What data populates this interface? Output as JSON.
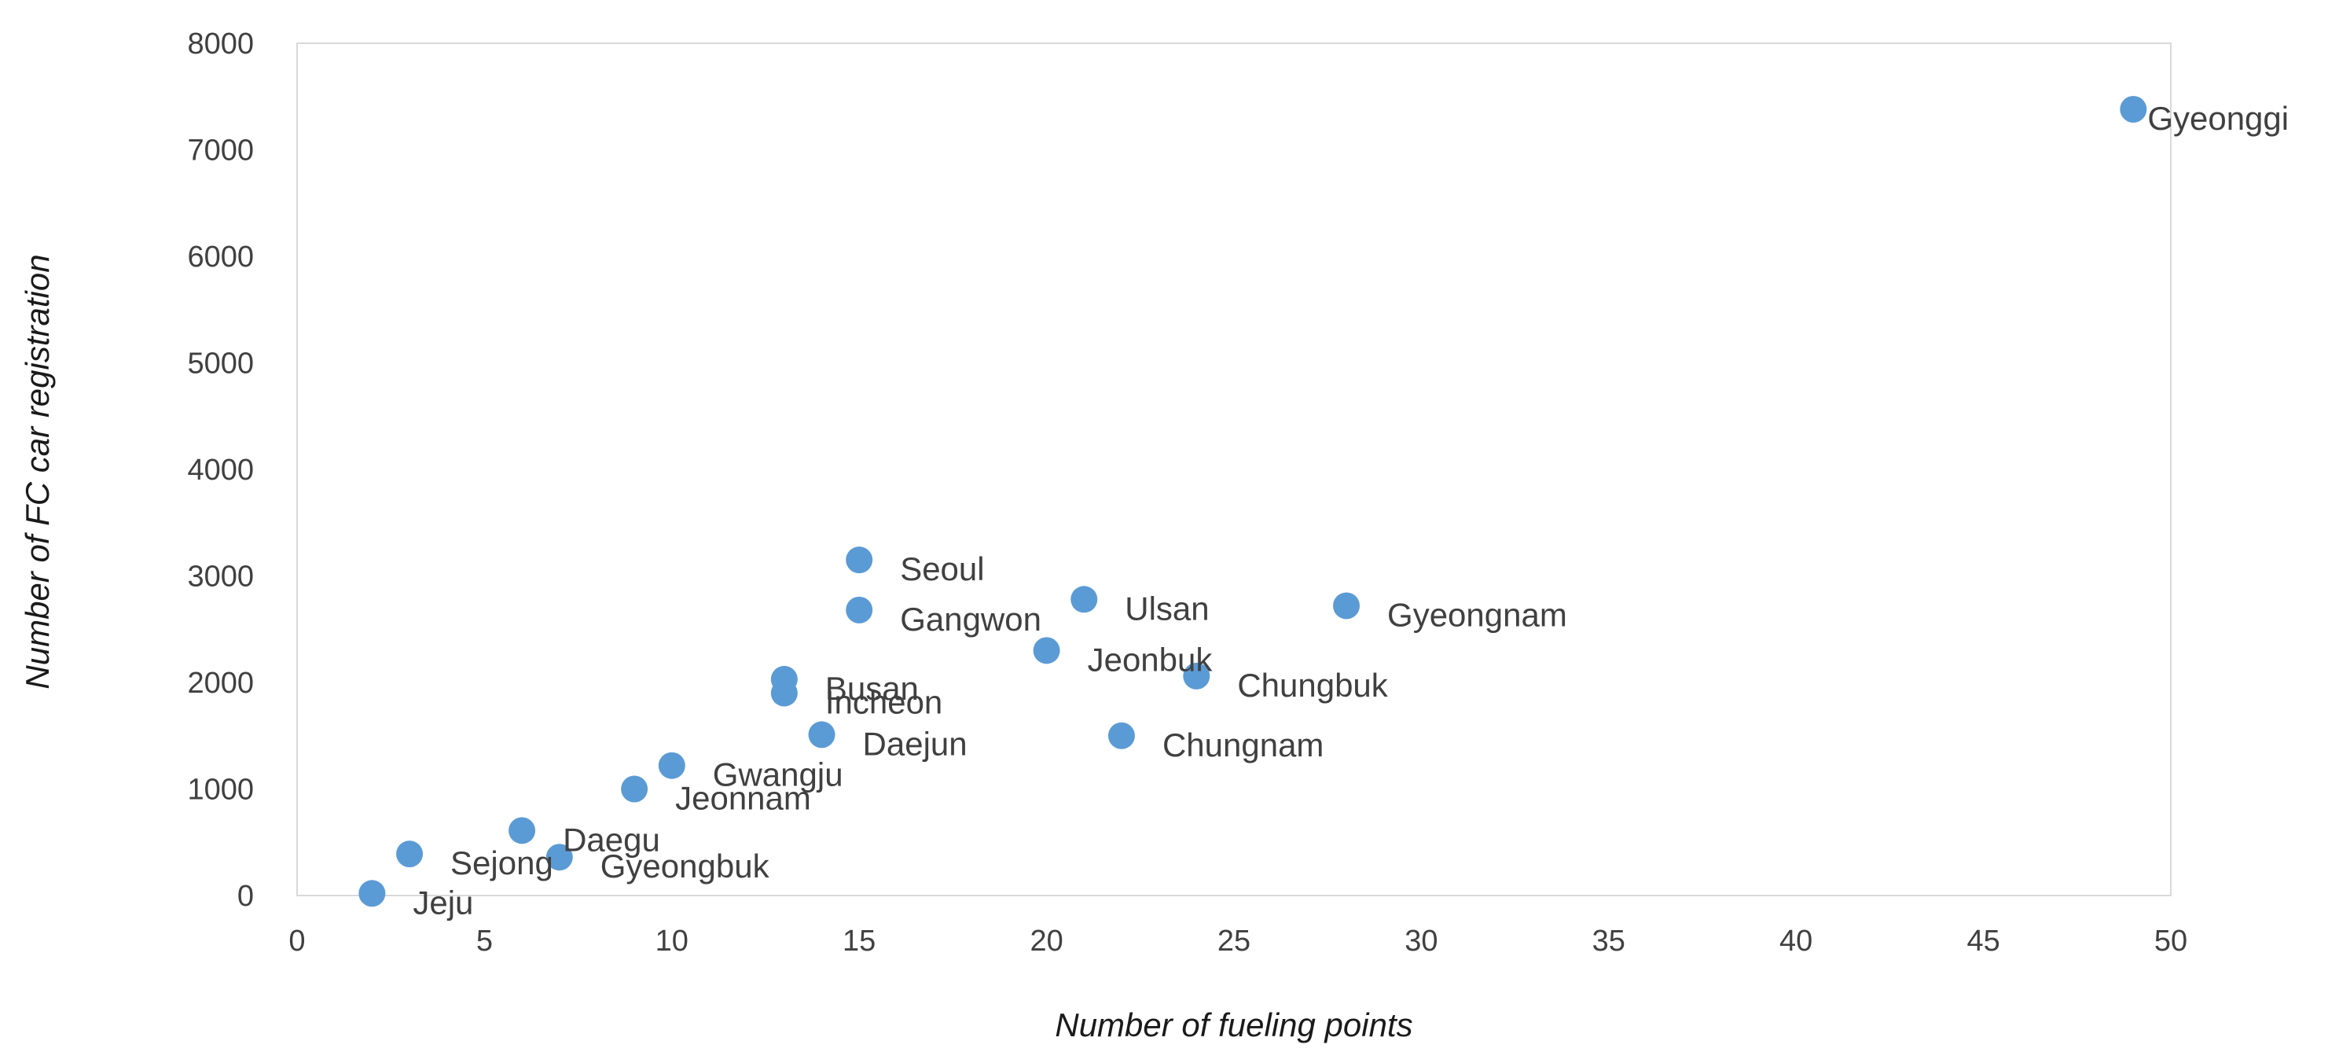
{
  "chart_data": {
    "type": "scatter",
    "title": "",
    "xlabel": "Number of fueling points",
    "ylabel": "Number of FC car registration",
    "xlim": [
      0,
      50
    ],
    "ylim": [
      0,
      8000
    ],
    "x_ticks": [
      "0",
      "5",
      "10",
      "15",
      "20",
      "25",
      "30",
      "35",
      "40",
      "45",
      "50"
    ],
    "y_ticks": [
      "0",
      "1000",
      "2000",
      "3000",
      "4000",
      "5000",
      "6000",
      "7000",
      "8000"
    ],
    "grid": false,
    "marker_color": "#5b9bd5",
    "points": [
      {
        "label": "Gyeonggi",
        "x": 49,
        "y": 7380
      },
      {
        "label": "Seoul",
        "x": 15,
        "y": 3150
      },
      {
        "label": "Gangwon",
        "x": 15,
        "y": 2680
      },
      {
        "label": "Ulsan",
        "x": 21,
        "y": 2780
      },
      {
        "label": "Gyeongnam",
        "x": 28,
        "y": 2720
      },
      {
        "label": "Jeonbuk",
        "x": 20,
        "y": 2300
      },
      {
        "label": "Chungbuk",
        "x": 24,
        "y": 2060
      },
      {
        "label": "Busan",
        "x": 13,
        "y": 2030
      },
      {
        "label": "Incheon",
        "x": 13,
        "y": 1900
      },
      {
        "label": "Daejun",
        "x": 14,
        "y": 1510
      },
      {
        "label": "Chungnam",
        "x": 22,
        "y": 1500
      },
      {
        "label": "Gwangju",
        "x": 10,
        "y": 1220
      },
      {
        "label": "Jeonnam",
        "x": 9,
        "y": 1000
      },
      {
        "label": "Daegu",
        "x": 6,
        "y": 610
      },
      {
        "label": "Sejong",
        "x": 3,
        "y": 390
      },
      {
        "label": "Gyeongbuk",
        "x": 7,
        "y": 360
      },
      {
        "label": "Jeju",
        "x": 2,
        "y": 20
      }
    ]
  }
}
